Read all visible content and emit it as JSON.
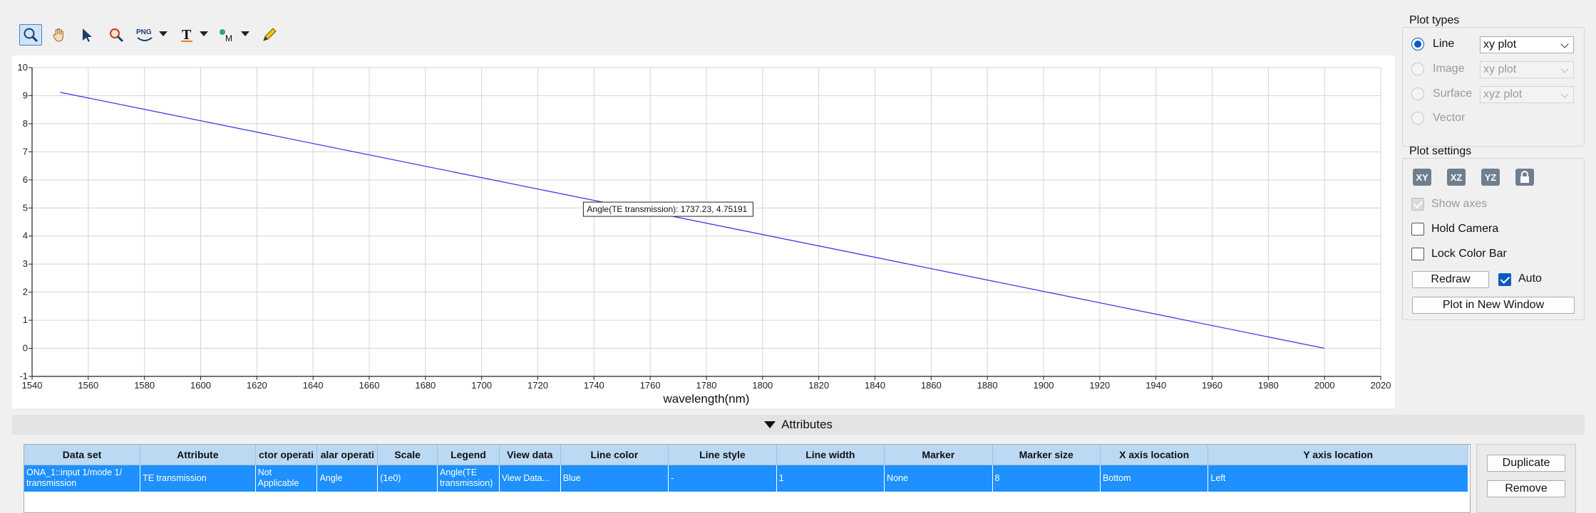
{
  "toolbar": {
    "icons": [
      "zoom-icon",
      "pan-hand-icon",
      "select-arrow-icon",
      "zoom-region-icon",
      "png-export-icon",
      "text-annotation-icon",
      "marker-icon",
      "pencil-icon"
    ],
    "png_label": "PNG"
  },
  "chart_data": {
    "type": "line",
    "title": "",
    "xlabel": "wavelength(nm)",
    "ylabel": "",
    "xlim": [
      1540,
      2020
    ],
    "ylim": [
      -1,
      10
    ],
    "xticks": [
      1540,
      1560,
      1580,
      1600,
      1620,
      1640,
      1660,
      1680,
      1700,
      1720,
      1740,
      1760,
      1780,
      1800,
      1820,
      1840,
      1860,
      1880,
      1900,
      1920,
      1940,
      1960,
      1980,
      2000,
      2020
    ],
    "yticks": [
      -1,
      0,
      1,
      2,
      3,
      4,
      5,
      6,
      7,
      8,
      9,
      10
    ],
    "grid": true,
    "series": [
      {
        "name": "Angle(TE transmission)",
        "color": "#3b3be8",
        "x": [
          1550,
          2000
        ],
        "y": [
          9.12,
          0.0
        ]
      }
    ],
    "tooltip": {
      "text": "Angle(TE transmission): 1737.23,  4.75191",
      "x": 1737.23,
      "y": 4.75191
    }
  },
  "attributes": {
    "title": "Attributes",
    "columns": [
      "Data set",
      "Attribute",
      "ctor operati",
      "alar operati",
      "Scale",
      "Legend",
      "View data",
      "Line color",
      "Line style",
      "Line width",
      "Marker",
      "Marker size",
      "X axis location",
      "Y axis location"
    ],
    "rows": [
      [
        "ONA_1::input 1/mode 1/ transmission",
        "TE transmission",
        "Not Applicable",
        "Angle",
        "(1e0)",
        "Angle(TE transmission)",
        "View Data...",
        "Blue",
        "-",
        "1",
        "None",
        "8",
        "Bottom",
        "Left"
      ]
    ],
    "duplicate_label": "Duplicate",
    "remove_label": "Remove"
  },
  "plot_types": {
    "title": "Plot types",
    "options": [
      {
        "label": "Line",
        "selected": true,
        "enabled": true,
        "select": "xy plot"
      },
      {
        "label": "Image",
        "selected": false,
        "enabled": false,
        "select": "xy plot"
      },
      {
        "label": "Surface",
        "selected": false,
        "enabled": false,
        "select": "xyz plot"
      },
      {
        "label": "Vector",
        "selected": false,
        "enabled": false,
        "select": null
      }
    ]
  },
  "plot_settings": {
    "title": "Plot settings",
    "view_buttons": [
      "XY",
      "XZ",
      "YZ"
    ],
    "show_axes": "Show axes",
    "hold_camera": "Hold Camera",
    "lock_color_bar": "Lock Color Bar",
    "redraw": "Redraw",
    "auto": "Auto",
    "plot_new_window": "Plot in New Window"
  },
  "colors": {
    "accent": "#0a5bbf",
    "row_selected": "#1e90ff",
    "header": "#bcd9f4"
  }
}
